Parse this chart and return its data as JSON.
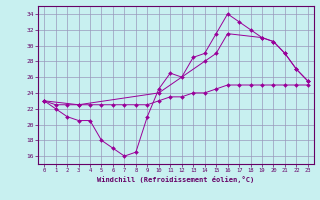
{
  "xlabel": "Windchill (Refroidissement éolien,°C)",
  "bg_color": "#c8f0f0",
  "grid_color": "#9999bb",
  "line_color": "#990099",
  "x_ticks": [
    0,
    1,
    2,
    3,
    4,
    5,
    6,
    7,
    8,
    9,
    10,
    11,
    12,
    13,
    14,
    15,
    16,
    17,
    18,
    19,
    20,
    21,
    22,
    23
  ],
  "ylim": [
    15.0,
    35.0
  ],
  "y_ticks": [
    16,
    18,
    20,
    22,
    24,
    26,
    28,
    30,
    32,
    34
  ],
  "line1_x": [
    0,
    1,
    2,
    3,
    4,
    5,
    6,
    7,
    8,
    9,
    10,
    11,
    12,
    13,
    14,
    15,
    16,
    17,
    18,
    19,
    20,
    21,
    22,
    23
  ],
  "line1_y": [
    23,
    22,
    21,
    20.5,
    20.5,
    18,
    17,
    16,
    16.5,
    21,
    24.5,
    26.5,
    26,
    28.5,
    29,
    31.5,
    34,
    33,
    32,
    31,
    30.5,
    29,
    27,
    25.5
  ],
  "line2_x": [
    0,
    3,
    10,
    14,
    15,
    16,
    19,
    20,
    21,
    22,
    23
  ],
  "line2_y": [
    23,
    22.5,
    24,
    28,
    29,
    31.5,
    31,
    30.5,
    29,
    27,
    25.5
  ],
  "line3_x": [
    0,
    1,
    2,
    3,
    4,
    5,
    6,
    7,
    8,
    9,
    10,
    11,
    12,
    13,
    14,
    15,
    16,
    17,
    18,
    19,
    20,
    21,
    22,
    23
  ],
  "line3_y": [
    23,
    22.5,
    22.5,
    22.5,
    22.5,
    22.5,
    22.5,
    22.5,
    22.5,
    22.5,
    23,
    23.5,
    23.5,
    24,
    24,
    24.5,
    25,
    25,
    25,
    25,
    25,
    25,
    25,
    25
  ]
}
